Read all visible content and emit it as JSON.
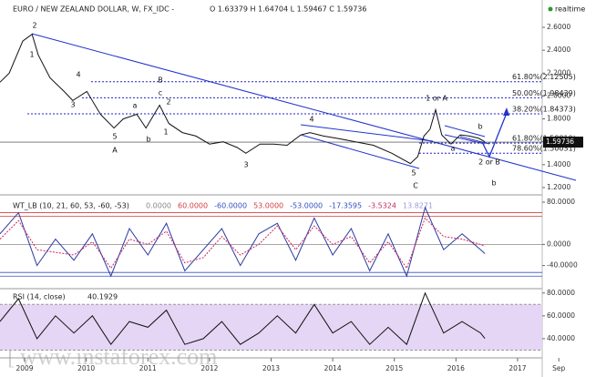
{
  "chart_data": [
    {
      "type": "line",
      "title": "EURO / NEW ZEALAND DOLLAR, W, FX_IDC -",
      "ohlc": "O 1.63379 H 1.64704 L 1.59467 C 1.59736",
      "status": "realtime",
      "x": [
        2008.6,
        2008.75,
        2008.97,
        2009.12,
        2009.22,
        2009.41,
        2009.64,
        2009.78,
        2010.01,
        2010.23,
        2010.45,
        2010.6,
        2010.82,
        2010.97,
        2011.19,
        2011.34,
        2011.56,
        2011.78,
        2012.0,
        2012.22,
        2012.45,
        2012.59,
        2012.82,
        2013.04,
        2013.26,
        2013.48,
        2013.63,
        2013.85,
        2014.07,
        2014.37,
        2014.66,
        2014.96,
        2015.26,
        2015.38,
        2015.48,
        2015.58,
        2015.67,
        2015.77,
        2015.92,
        2016.07,
        2016.22,
        2016.37,
        2016.47
      ],
      "series": [
        {
          "color": "#111111",
          "values": [
            2.12,
            2.2,
            2.48,
            2.54,
            2.36,
            2.16,
            2.04,
            1.96,
            2.04,
            1.84,
            1.72,
            1.8,
            1.84,
            1.72,
            1.92,
            1.76,
            1.68,
            1.65,
            1.58,
            1.6,
            1.55,
            1.5,
            1.58,
            1.58,
            1.57,
            1.66,
            1.68,
            1.65,
            1.63,
            1.6,
            1.57,
            1.5,
            1.41,
            1.47,
            1.65,
            1.71,
            1.88,
            1.66,
            1.58,
            1.66,
            1.65,
            1.63,
            1.6
          ]
        }
      ],
      "last_price": 1.59736,
      "levels": [
        {
          "value": 2.12505,
          "label": "61.80%(2.12505)"
        },
        {
          "value": 1.98439,
          "label": "50.00%(1.98439)"
        },
        {
          "value": 1.84373,
          "label": "38.20%(1.84373)"
        },
        {
          "value": 1.58819,
          "label": "61.80%(1.58819)"
        },
        {
          "value": 1.50031,
          "label": "78.60%(1.50031)"
        }
      ],
      "level_color": "#2222cc",
      "annotations": [
        "2",
        "1",
        "4",
        "3",
        "5",
        "A",
        "a",
        "b",
        "B",
        "c",
        "2",
        "1",
        "3",
        "4",
        "5",
        "C",
        "1 or A",
        "a",
        "b",
        "2 or B",
        "b"
      ],
      "xlim": [
        2008.6,
        2017.4
      ],
      "ylim": [
        1.144,
        2.807
      ],
      "yticks": [
        {
          "value": 1.2,
          "label": "1.2000"
        },
        {
          "value": 1.4,
          "label": "1.4000"
        },
        {
          "value": 1.6,
          "label": "1.6000"
        },
        {
          "value": 1.8,
          "label": "1.8000"
        },
        {
          "value": 2.0,
          "label": "2.0000"
        },
        {
          "value": 2.2,
          "label": "2.2000"
        },
        {
          "value": 2.4,
          "label": "2.4000"
        },
        {
          "value": 2.6,
          "label": "2.6000"
        }
      ]
    },
    {
      "type": "line",
      "title": "WT_LB (10, 21, 60, 53, -60, -53)",
      "legend_values": [
        "0.0000",
        "60.0000",
        "-60.0000",
        "53.0000",
        "-53.0000",
        "-17.3595",
        "-3.5324",
        "13.8271"
      ],
      "legend_colors": [
        "#888888",
        "#d04040",
        "#3050c0",
        "#d04040",
        "#3050c0",
        "#3050c0",
        "#c03060",
        "#9999dd"
      ],
      "x": [
        2008.6,
        2008.9,
        2009.2,
        2009.5,
        2009.8,
        2010.1,
        2010.4,
        2010.7,
        2011.0,
        2011.3,
        2011.6,
        2011.9,
        2012.2,
        2012.5,
        2012.8,
        2013.1,
        2013.4,
        2013.7,
        2014.0,
        2014.3,
        2014.6,
        2014.9,
        2015.2,
        2015.5,
        2015.8,
        2016.1,
        2016.4,
        2016.47
      ],
      "series": [
        {
          "color": "#2a3aa0",
          "values": [
            20,
            60,
            -40,
            10,
            -30,
            20,
            -60,
            30,
            -20,
            40,
            -50,
            -10,
            30,
            -40,
            20,
            40,
            -30,
            50,
            -20,
            30,
            -50,
            20,
            -60,
            70,
            -10,
            20,
            -10,
            -17.3595
          ]
        },
        {
          "color": "#d02060",
          "dashed": true,
          "values": [
            10,
            45,
            -10,
            -15,
            -20,
            5,
            -45,
            10,
            0,
            25,
            -35,
            -25,
            15,
            -20,
            0,
            35,
            -10,
            35,
            0,
            15,
            -35,
            5,
            -45,
            50,
            15,
            10,
            0,
            -3.5324
          ]
        }
      ],
      "levels": [
        60,
        53,
        0,
        -53,
        -60
      ],
      "level_colors": [
        "#d04040",
        "#d04040",
        "#888888",
        "#3050c0",
        "#3050c0"
      ],
      "xlim": [
        2008.6,
        2017.4
      ],
      "ylim": [
        -82,
        92
      ],
      "yticks": [
        {
          "value": 80,
          "label": "80.0000"
        },
        {
          "value": 0,
          "label": "0.0000"
        },
        {
          "value": -40,
          "label": "-40.0000"
        }
      ]
    },
    {
      "type": "line",
      "title": "RSI (14, close)",
      "last_value": 40.1929,
      "x": [
        2008.6,
        2008.9,
        2009.2,
        2009.5,
        2009.8,
        2010.1,
        2010.4,
        2010.7,
        2011.0,
        2011.3,
        2011.6,
        2011.9,
        2012.2,
        2012.5,
        2012.8,
        2013.1,
        2013.4,
        2013.7,
        2014.0,
        2014.3,
        2014.6,
        2014.9,
        2015.2,
        2015.5,
        2015.8,
        2016.1,
        2016.4,
        2016.47
      ],
      "series": [
        {
          "color": "#111111",
          "values": [
            55,
            75,
            40,
            60,
            45,
            60,
            35,
            55,
            50,
            65,
            35,
            40,
            55,
            35,
            45,
            60,
            45,
            70,
            45,
            55,
            35,
            50,
            35,
            80,
            45,
            55,
            45,
            40.1929
          ]
        }
      ],
      "band": [
        30,
        70
      ],
      "band_color": "#e4d6f4",
      "xlim": [
        2008.6,
        2017.4
      ],
      "ylim": [
        24,
        83
      ],
      "yticks": [
        {
          "value": 80,
          "label": "80.0000"
        },
        {
          "value": 60,
          "label": "60.0000"
        },
        {
          "value": 40,
          "label": "40.0000"
        }
      ],
      "xticks": [
        2009,
        2010,
        2011,
        2012,
        2013,
        2014,
        2015,
        2016,
        2017,
        {
          "value": 2017.67,
          "label": "Sep"
        }
      ]
    }
  ],
  "watermark": "www.instaforex.com"
}
